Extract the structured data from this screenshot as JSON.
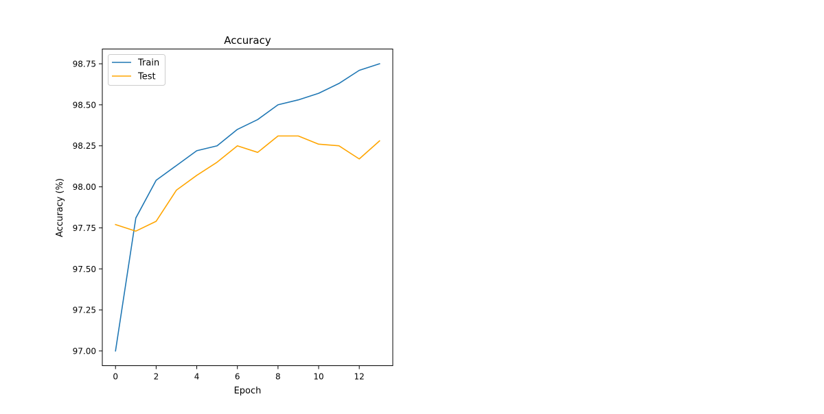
{
  "chart_data": {
    "type": "line",
    "title": "Accuracy",
    "xlabel": "Epoch",
    "ylabel": "Accuracy (%)",
    "x": [
      0,
      1,
      2,
      3,
      4,
      5,
      6,
      7,
      8,
      9,
      10,
      11,
      12,
      13
    ],
    "series": [
      {
        "name": "Train",
        "color": "#1f77b4",
        "values": [
          97.0,
          97.81,
          98.04,
          98.13,
          98.22,
          98.25,
          98.35,
          98.41,
          98.5,
          98.53,
          98.57,
          98.63,
          98.71,
          98.75
        ]
      },
      {
        "name": "Test",
        "color": "#ffa500",
        "values": [
          97.77,
          97.73,
          97.79,
          97.98,
          98.07,
          98.15,
          98.25,
          98.21,
          98.31,
          98.31,
          98.26,
          98.25,
          98.17,
          98.28
        ]
      }
    ],
    "xlim": [
      -0.65,
      13.65
    ],
    "ylim": [
      96.91,
      98.84
    ],
    "xticks": [
      0,
      2,
      4,
      6,
      8,
      10,
      12
    ],
    "xtick_labels": [
      "0",
      "2",
      "4",
      "6",
      "8",
      "10",
      "12"
    ],
    "yticks": [
      97.0,
      97.25,
      97.5,
      97.75,
      98.0,
      98.25,
      98.5,
      98.75
    ],
    "ytick_labels": [
      "97.00",
      "97.25",
      "97.50",
      "97.75",
      "98.00",
      "98.25",
      "98.50",
      "98.75"
    ],
    "legend_position": "top-left",
    "grid": false
  }
}
